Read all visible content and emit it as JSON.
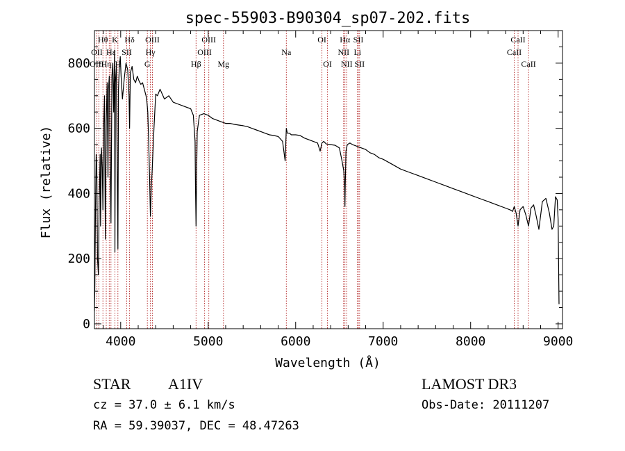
{
  "chart_data": {
    "type": "line",
    "title": "spec-55903-B90304_sp07-202.fits",
    "xlabel": "Wavelength (Å)",
    "ylabel": "Flux (relative)",
    "xlim": [
      3700,
      9050
    ],
    "ylim": [
      -15,
      900
    ],
    "xticks": [
      4000,
      5000,
      6000,
      7000,
      8000,
      9000
    ],
    "yticks": [
      0,
      200,
      400,
      600,
      800
    ],
    "grid": false,
    "series": [
      {
        "name": "flux",
        "x": [
          3700,
          3705,
          3712,
          3720,
          3727,
          3735,
          3745,
          3755,
          3765,
          3770,
          3780,
          3790,
          3797,
          3805,
          3815,
          3825,
          3835,
          3845,
          3855,
          3860,
          3870,
          3880,
          3889,
          3900,
          3910,
          3920,
          3930,
          3934,
          3940,
          3950,
          3960,
          3968,
          3975,
          3985,
          3995,
          4005,
          4020,
          4040,
          4060,
          4080,
          4095,
          4102,
          4110,
          4130,
          4150,
          4170,
          4190,
          4210,
          4230,
          4250,
          4270,
          4290,
          4300,
          4310,
          4320,
          4330,
          4340,
          4350,
          4360,
          4380,
          4400,
          4420,
          4450,
          4500,
          4550,
          4600,
          4650,
          4700,
          4750,
          4800,
          4830,
          4850,
          4855,
          4861,
          4867,
          4875,
          4900,
          4950,
          5000,
          5050,
          5100,
          5150,
          5200,
          5250,
          5300,
          5350,
          5400,
          5450,
          5500,
          5550,
          5600,
          5650,
          5700,
          5750,
          5800,
          5850,
          5880,
          5893,
          5905,
          5930,
          5950,
          6000,
          6050,
          6100,
          6150,
          6200,
          6250,
          6280,
          6300,
          6320,
          6350,
          6400,
          6450,
          6500,
          6530,
          6550,
          6560,
          6563,
          6567,
          6575,
          6590,
          6620,
          6650,
          6700,
          6750,
          6800,
          6850,
          6900,
          6950,
          7000,
          7100,
          7200,
          7300,
          7400,
          7500,
          7600,
          7700,
          7800,
          7900,
          8000,
          8100,
          8200,
          8300,
          8400,
          8450,
          8480,
          8498,
          8520,
          8542,
          8565,
          8600,
          8630,
          8662,
          8690,
          8720,
          8750,
          8780,
          8820,
          8860,
          8900,
          8930,
          8950,
          8970,
          8990,
          9000,
          9005,
          9010
        ],
        "values": [
          40,
          120,
          350,
          520,
          480,
          200,
          150,
          380,
          520,
          300,
          540,
          480,
          350,
          600,
          700,
          260,
          620,
          740,
          450,
          720,
          760,
          500,
          310,
          760,
          800,
          650,
          840,
          220,
          740,
          790,
          470,
          230,
          720,
          790,
          820,
          760,
          690,
          750,
          800,
          780,
          700,
          600,
          770,
          790,
          750,
          740,
          760,
          745,
          735,
          740,
          720,
          700,
          680,
          650,
          560,
          450,
          330,
          420,
          470,
          600,
          705,
          700,
          720,
          690,
          700,
          680,
          675,
          670,
          665,
          660,
          640,
          560,
          420,
          300,
          440,
          590,
          640,
          645,
          640,
          630,
          625,
          620,
          615,
          615,
          612,
          610,
          608,
          605,
          600,
          595,
          590,
          585,
          580,
          578,
          575,
          560,
          500,
          600,
          585,
          585,
          580,
          580,
          578,
          570,
          565,
          560,
          555,
          530,
          555,
          560,
          552,
          550,
          548,
          540,
          500,
          470,
          420,
          360,
          430,
          530,
          550,
          555,
          550,
          545,
          540,
          535,
          525,
          520,
          510,
          505,
          490,
          475,
          465,
          455,
          445,
          435,
          425,
          415,
          405,
          395,
          385,
          375,
          365,
          355,
          350,
          345,
          360,
          340,
          300,
          350,
          360,
          335,
          300,
          355,
          365,
          330,
          290,
          375,
          385,
          340,
          290,
          300,
          390,
          380,
          320,
          200,
          60
        ]
      }
    ],
    "lines": [
      {
        "name": "Hθ",
        "wavelength": 3797,
        "row": 0
      },
      {
        "name": "OII",
        "wavelength": 3727,
        "row": 1
      },
      {
        "name": "OIII",
        "wavelength": 3727,
        "row": 2
      },
      {
        "name": "K",
        "wavelength": 3934,
        "row": 0
      },
      {
        "name": "Hδ",
        "wavelength": 4102,
        "row": 0
      },
      {
        "name": "Hε",
        "wavelength": 3889,
        "row": 1
      },
      {
        "name": "SII",
        "wavelength": 4069,
        "row": 1
      },
      {
        "name": "Hη",
        "wavelength": 3835,
        "row": 2
      },
      {
        "name": "H",
        "wavelength": 3968,
        "row": 2
      },
      {
        "name": "OIII",
        "wavelength": 4363,
        "row": 0
      },
      {
        "name": "Hγ",
        "wavelength": 4340,
        "row": 1
      },
      {
        "name": "G",
        "wavelength": 4305,
        "row": 2
      },
      {
        "name": "OIII",
        "wavelength": 5007,
        "row": 0
      },
      {
        "name": "OIII",
        "wavelength": 4959,
        "row": 1
      },
      {
        "name": "Hβ",
        "wavelength": 4861,
        "row": 2
      },
      {
        "name": "Mg",
        "wavelength": 5175,
        "row": 2
      },
      {
        "name": "Na",
        "wavelength": 5893,
        "row": 1
      },
      {
        "name": "OI",
        "wavelength": 6300,
        "row": 0
      },
      {
        "name": "OI",
        "wavelength": 6364,
        "row": 2
      },
      {
        "name": "Hα",
        "wavelength": 6563,
        "row": 0
      },
      {
        "name": "SII",
        "wavelength": 6716,
        "row": 0
      },
      {
        "name": "NII",
        "wavelength": 6548,
        "row": 1
      },
      {
        "name": "Li",
        "wavelength": 6707,
        "row": 1
      },
      {
        "name": "NII",
        "wavelength": 6584,
        "row": 2
      },
      {
        "name": "SII",
        "wavelength": 6731,
        "row": 2
      },
      {
        "name": "CaII",
        "wavelength": 8542,
        "row": 0
      },
      {
        "name": "CaII",
        "wavelength": 8498,
        "row": 1
      },
      {
        "name": "CaII",
        "wavelength": 8662,
        "row": 2
      }
    ],
    "line_positions": [
      3727,
      3750,
      3797,
      3835,
      3869,
      3889,
      3934,
      3968,
      4069,
      4102,
      4305,
      4340,
      4363,
      4861,
      4959,
      5007,
      5175,
      5893,
      6300,
      6364,
      6548,
      6563,
      6584,
      6707,
      6716,
      6731,
      8498,
      8542,
      8662
    ]
  },
  "info": {
    "object_class": "STAR",
    "subclass": "A1IV",
    "survey": "LAMOST DR3",
    "cz": "cz = 37.0 ± 6.1 km/s",
    "obs_date": "Obs-Date: 20111207",
    "coords": "RA =  59.39037, DEC =  48.47263"
  },
  "colors": {
    "axis": "#000000",
    "spectrum": "#000000",
    "line_markers": "#b22222"
  }
}
